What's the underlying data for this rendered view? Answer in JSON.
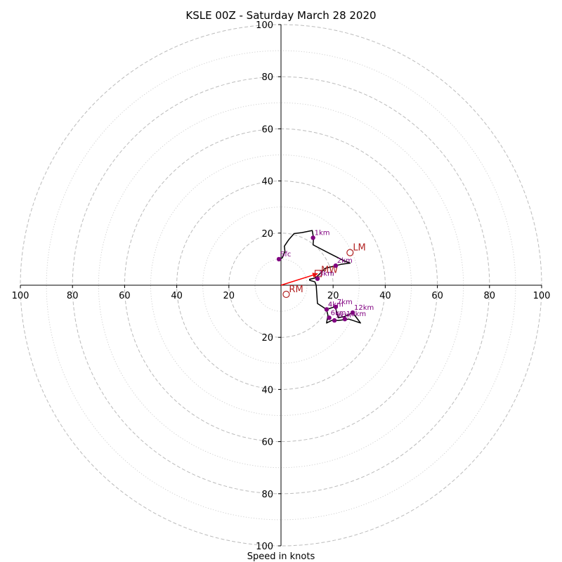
{
  "chart_data": {
    "type": "hodograph",
    "title": "KSLE 00Z - Saturday March 28 2020",
    "xlabel": "Speed in knots",
    "range": 100,
    "ring_major": [
      20,
      40,
      60,
      80,
      100
    ],
    "ring_minor": [
      10,
      30,
      50,
      70,
      90
    ],
    "x_ticks": [
      {
        "value": -100,
        "label": "100"
      },
      {
        "value": -80,
        "label": "80"
      },
      {
        "value": -60,
        "label": "60"
      },
      {
        "value": -40,
        "label": "40"
      },
      {
        "value": -20,
        "label": "20"
      },
      {
        "value": 20,
        "label": "20"
      },
      {
        "value": 40,
        "label": "40"
      },
      {
        "value": 60,
        "label": "60"
      },
      {
        "value": 80,
        "label": "80"
      },
      {
        "value": 100,
        "label": "100"
      }
    ],
    "y_ticks": [
      {
        "value": 100,
        "label": "100"
      },
      {
        "value": 80,
        "label": "80"
      },
      {
        "value": 60,
        "label": "60"
      },
      {
        "value": 40,
        "label": "40"
      },
      {
        "value": 20,
        "label": "20"
      },
      {
        "value": -20,
        "label": "20"
      },
      {
        "value": -40,
        "label": "40"
      },
      {
        "value": -60,
        "label": "60"
      },
      {
        "value": -80,
        "label": "80"
      },
      {
        "value": -100,
        "label": "100"
      }
    ],
    "profile": [
      [
        -0.8,
        10
      ],
      [
        0.5,
        10.5
      ],
      [
        1.5,
        13
      ],
      [
        1.3,
        15
      ],
      [
        3,
        17.5
      ],
      [
        5,
        19.8
      ],
      [
        8,
        20.2
      ],
      [
        12,
        21
      ],
      [
        12.5,
        18
      ],
      [
        12.3,
        15.5
      ],
      [
        18,
        12.5
      ],
      [
        24,
        9.5
      ],
      [
        26.5,
        8.5
      ],
      [
        23,
        8
      ],
      [
        21,
        7.5
      ],
      [
        17,
        6.5
      ],
      [
        14,
        3.5
      ],
      [
        12.8,
        2.7
      ],
      [
        11,
        2.3
      ],
      [
        11,
        1.9
      ],
      [
        13,
        1.3
      ],
      [
        13.5,
        0
      ],
      [
        14,
        -7
      ],
      [
        17.5,
        -9.3
      ],
      [
        20.5,
        -8.3
      ],
      [
        21,
        -9
      ],
      [
        22,
        -12.5
      ],
      [
        24.5,
        -12
      ],
      [
        27.5,
        -10.5
      ],
      [
        30.5,
        -14.5
      ],
      [
        26,
        -13
      ],
      [
        22,
        -13.5
      ],
      [
        19.5,
        -13.5
      ],
      [
        17.5,
        -14.5
      ],
      [
        18,
        -11.5
      ],
      [
        17.5,
        -9.5
      ]
    ],
    "height_markers": [
      {
        "label": "Sfc",
        "u": -0.8,
        "v": 10
      },
      {
        "label": "1km",
        "u": 12.3,
        "v": 18.2
      },
      {
        "label": "2km",
        "u": 21,
        "v": 7.5
      },
      {
        "label": "3km",
        "u": 14,
        "v": 2.5
      },
      {
        "label": "4km",
        "u": 17.5,
        "v": -9.3
      },
      {
        "label": "7km",
        "u": 21,
        "v": -8.3
      },
      {
        "label": "12km",
        "u": 27.5,
        "v": -10.5
      },
      {
        "label": "6km",
        "u": 18.5,
        "v": -12.5
      },
      {
        "label": "9km",
        "u": 20.5,
        "v": -13.5
      },
      {
        "label": "10km",
        "u": 24.5,
        "v": -13
      }
    ],
    "storm_motion": {
      "LM": {
        "label": "LM",
        "u": 26.5,
        "v": 12.5
      },
      "MW": {
        "label": "MW",
        "u": 14.3,
        "v": 4.5
      },
      "RM": {
        "label": "RM",
        "u": 2,
        "v": -3.5
      }
    },
    "colors": {
      "profile": "#000000",
      "markers": "#800080",
      "storm_motion": "#b22222",
      "arrow": "#ff0000",
      "rings": "#bbbbbb"
    }
  }
}
